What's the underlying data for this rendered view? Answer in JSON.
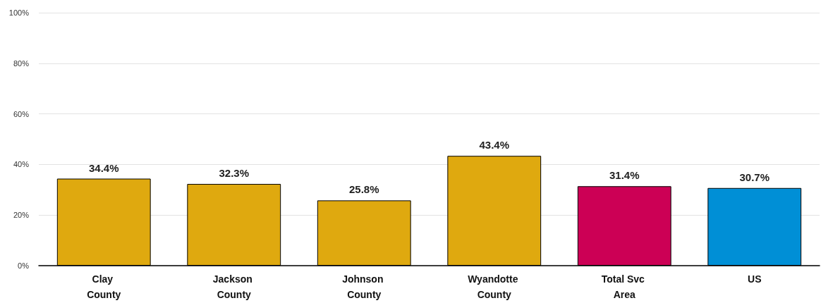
{
  "chart_data": {
    "type": "bar",
    "categories": [
      "Clay County",
      "Jackson County",
      "Johnson County",
      "Wyandotte County",
      "Total Svc Area",
      "US"
    ],
    "values": [
      34.4,
      32.3,
      25.8,
      43.4,
      31.4,
      30.7
    ],
    "colors": [
      "#dfa90f",
      "#dfa90f",
      "#dfa90f",
      "#dfa90f",
      "#cc0055",
      "#008fd6"
    ],
    "value_labels": [
      "34.4%",
      "32.3%",
      "25.8%",
      "43.4%",
      "31.4%",
      "30.7%"
    ],
    "ylim": [
      0,
      100
    ],
    "yticks": [
      {
        "value": 0,
        "label": "0%"
      },
      {
        "value": 20,
        "label": "20%"
      },
      {
        "value": 40,
        "label": "40%"
      },
      {
        "value": 60,
        "label": "60%"
      },
      {
        "value": 80,
        "label": "80%"
      },
      {
        "value": 100,
        "label": "100%"
      }
    ],
    "grid": "y"
  }
}
